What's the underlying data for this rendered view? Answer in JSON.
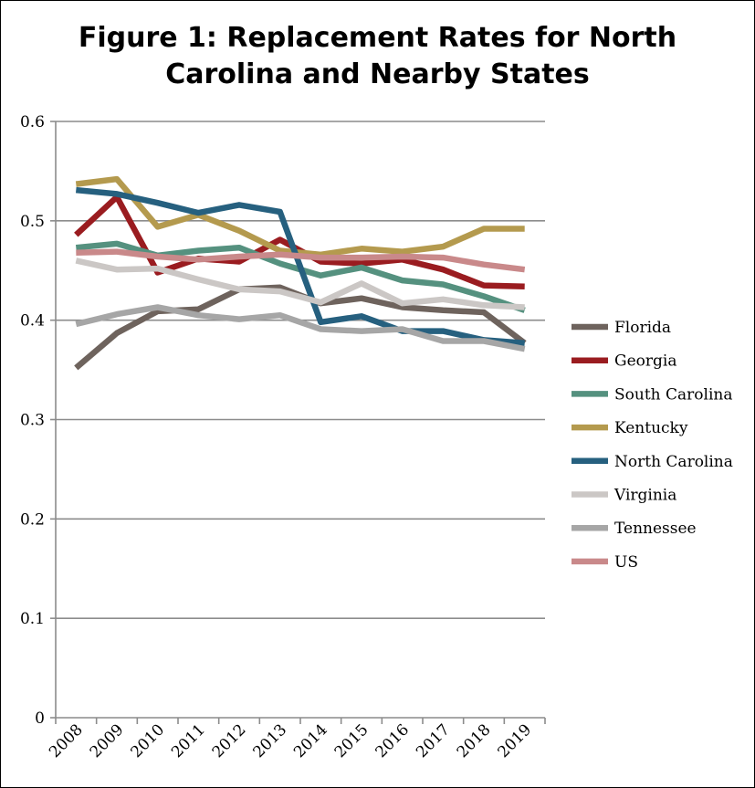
{
  "title_line1": "Figure 1: Replacement Rates for North",
  "title_line2": "Carolina and Nearby States",
  "chart_data": {
    "type": "line",
    "title": "Figure 1: Replacement Rates for North Carolina and Nearby States",
    "xlabel": "",
    "ylabel": "",
    "ylim": [
      0,
      0.6
    ],
    "yticks": [
      "0",
      "0.1",
      "0.2",
      "0.3",
      "0.4",
      "0.5",
      "0.6"
    ],
    "grid": "horizontal",
    "legend_position": "right",
    "categories": [
      "2008",
      "2009",
      "2010",
      "2011",
      "2012",
      "2013",
      "2014",
      "2015",
      "2016",
      "2017",
      "2018",
      "2019"
    ],
    "series": [
      {
        "name": "Florida",
        "color": "#6e635d",
        "values": [
          0.352,
          0.387,
          0.409,
          0.411,
          0.431,
          0.433,
          0.417,
          0.422,
          0.413,
          0.41,
          0.408,
          0.377
        ]
      },
      {
        "name": "Georgia",
        "color": "#9a1c20",
        "values": [
          0.486,
          0.524,
          0.448,
          0.462,
          0.459,
          0.481,
          0.459,
          0.457,
          0.461,
          0.451,
          0.435,
          0.434
        ]
      },
      {
        "name": "South Carolina",
        "color": "#55917f",
        "values": [
          0.473,
          0.477,
          0.465,
          0.47,
          0.473,
          0.457,
          0.445,
          0.453,
          0.44,
          0.436,
          0.424,
          0.41
        ]
      },
      {
        "name": "Kentucky",
        "color": "#b49a4e",
        "values": [
          0.537,
          0.542,
          0.494,
          0.506,
          0.49,
          0.47,
          0.466,
          0.472,
          0.469,
          0.474,
          0.492,
          0.492
        ]
      },
      {
        "name": "North Carolina",
        "color": "#26607f",
        "values": [
          0.531,
          0.527,
          0.518,
          0.508,
          0.516,
          0.509,
          0.398,
          0.404,
          0.389,
          0.389,
          0.38,
          0.377
        ]
      },
      {
        "name": "Virginia",
        "color": "#cbc7c5",
        "values": [
          0.46,
          0.451,
          0.452,
          0.441,
          0.431,
          0.429,
          0.418,
          0.437,
          0.417,
          0.421,
          0.415,
          0.413
        ]
      },
      {
        "name": "Tennessee",
        "color": "#a6a6a6",
        "values": [
          0.396,
          0.406,
          0.413,
          0.405,
          0.401,
          0.405,
          0.391,
          0.389,
          0.391,
          0.379,
          0.379,
          0.371
        ]
      },
      {
        "name": "US",
        "color": "#c9898a",
        "values": [
          0.468,
          0.469,
          0.464,
          0.461,
          0.464,
          0.466,
          0.463,
          0.463,
          0.464,
          0.463,
          0.456,
          0.451
        ]
      }
    ]
  }
}
